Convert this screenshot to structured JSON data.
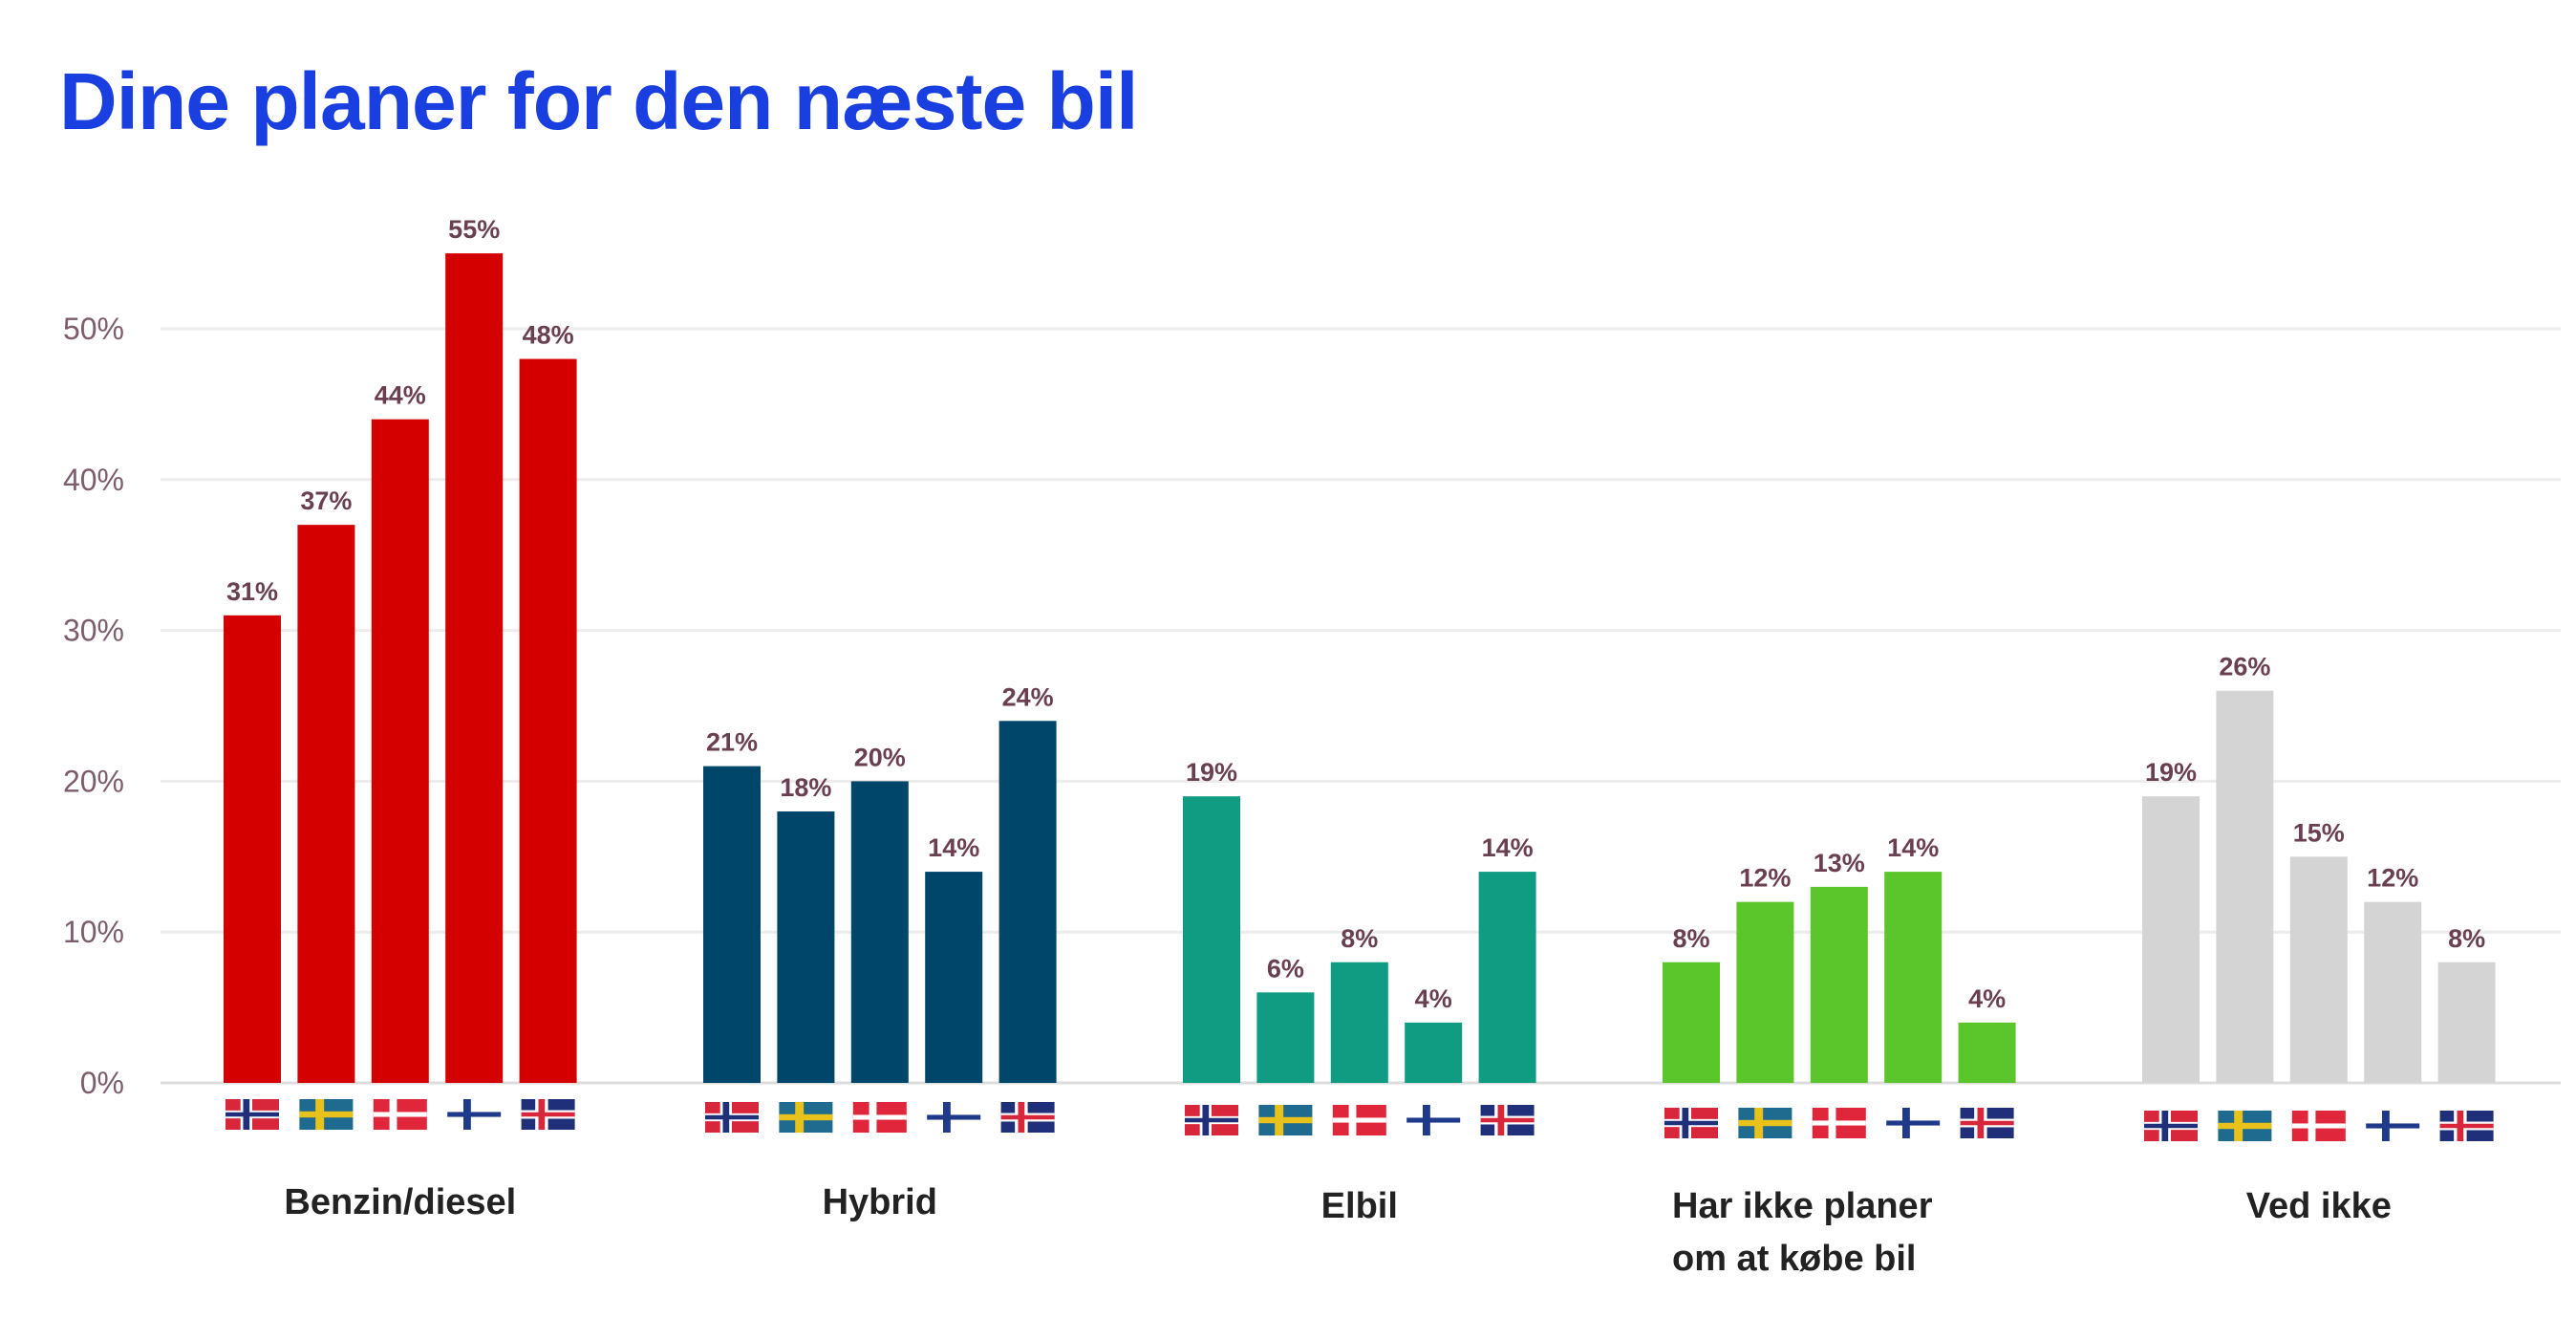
{
  "chart_data": {
    "type": "bar",
    "title": "Dine planer for den næste bil",
    "xlabel": "",
    "ylabel": "",
    "ylim": [
      0,
      55
    ],
    "yticks": [
      "0%",
      "10%",
      "20%",
      "30%",
      "40%",
      "50%"
    ],
    "ytick_values": [
      0,
      10,
      20,
      30,
      40,
      50
    ],
    "grid": true,
    "countries": [
      "Norway",
      "Sweden",
      "Denmark",
      "Finland",
      "Iceland"
    ],
    "categories": [
      {
        "label": [
          "Benzin/diesel"
        ],
        "color": "#d40000",
        "values": [
          31,
          37,
          44,
          55,
          48
        ],
        "labels": [
          "31%",
          "37%",
          "44%",
          "55%",
          "48%"
        ]
      },
      {
        "label": [
          "Hybrid"
        ],
        "color": "#00466b",
        "values": [
          21,
          18,
          20,
          14,
          24
        ],
        "labels": [
          "21%",
          "18%",
          "20%",
          "14%",
          "24%"
        ]
      },
      {
        "label": [
          "Elbil"
        ],
        "color": "#0f9c83",
        "values": [
          19,
          6,
          8,
          4,
          14
        ],
        "labels": [
          "19%",
          "6%",
          "8%",
          "4%",
          "14%"
        ]
      },
      {
        "label": [
          "Har ikke planer",
          "om at købe bil"
        ],
        "color": "#5ac62b",
        "values": [
          8,
          12,
          13,
          14,
          4
        ],
        "labels": [
          "8%",
          "12%",
          "13%",
          "14%",
          "4%"
        ]
      },
      {
        "label": [
          "Ved ikke"
        ],
        "color": "#d4d4d4",
        "values": [
          19,
          26,
          15,
          12,
          8
        ],
        "labels": [
          "19%",
          "26%",
          "15%",
          "12%",
          "8%"
        ]
      }
    ]
  }
}
